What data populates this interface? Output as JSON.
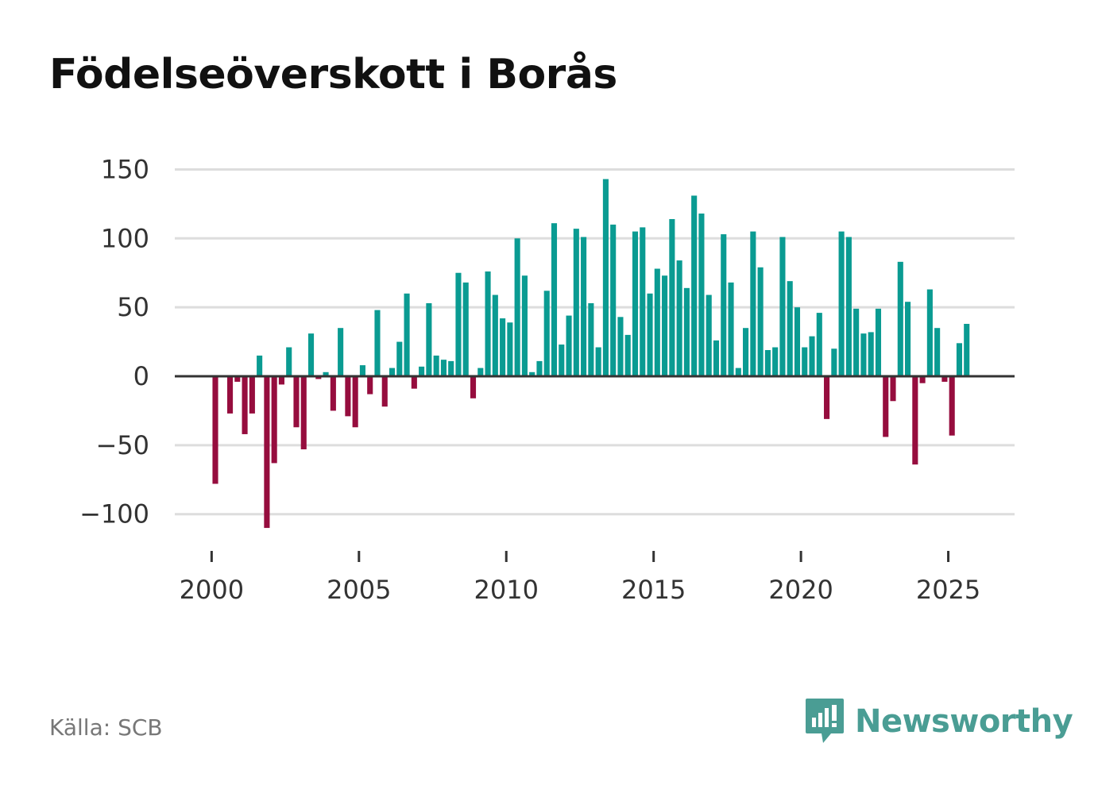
{
  "title": "Födelseöverskott i Borås",
  "source": "Källa: SCB",
  "brand": {
    "name": "Newsworthy",
    "icon": "newsworthy-logo-icon"
  },
  "colors": {
    "positive": "#0a9b92",
    "negative": "#960d3e",
    "grid": "#dddddd",
    "zero_line": "#333333",
    "brand": "#4a9d94"
  },
  "chart_data": {
    "type": "bar",
    "title": "Födelseöverskott i Borås",
    "xlabel": "",
    "ylabel": "",
    "ylim": [
      -110,
      150
    ],
    "xlim": [
      1998.75,
      2027.25
    ],
    "y_ticks": [
      150,
      100,
      50,
      0,
      -50,
      -100
    ],
    "y_tick_labels": [
      "150",
      "100",
      "50",
      "0",
      "−50",
      "−100"
    ],
    "x_ticks": [
      2000,
      2005,
      2010,
      2015,
      2020,
      2025
    ],
    "x_tick_labels": [
      "2000",
      "2005",
      "2010",
      "2015",
      "2020",
      "2025"
    ],
    "grid": true,
    "series": [
      {
        "name": "Födelseöverskott",
        "start": "2000 Q1",
        "frequency": "quarterly",
        "values": [
          -78,
          0,
          -27,
          -4,
          -42,
          -27,
          15,
          -110,
          -63,
          -6,
          21,
          -37,
          -53,
          31,
          -2,
          3,
          -25,
          35,
          -29,
          -37,
          8,
          -13,
          48,
          -22,
          6,
          25,
          60,
          -9,
          7,
          53,
          15,
          12,
          11,
          75,
          68,
          -16,
          6,
          76,
          59,
          42,
          39,
          100,
          73,
          3,
          11,
          62,
          111,
          23,
          44,
          107,
          101,
          53,
          21,
          143,
          110,
          43,
          30,
          105,
          108,
          60,
          78,
          73,
          114,
          84,
          64,
          131,
          118,
          59,
          26,
          103,
          68,
          6,
          35,
          105,
          79,
          19,
          21,
          101,
          69,
          50,
          21,
          29,
          46,
          -31,
          20,
          105,
          101,
          49,
          31,
          32,
          49,
          -44,
          -18,
          83,
          54,
          -64,
          -5,
          63,
          35,
          -4,
          -43,
          24,
          38
        ]
      }
    ]
  }
}
